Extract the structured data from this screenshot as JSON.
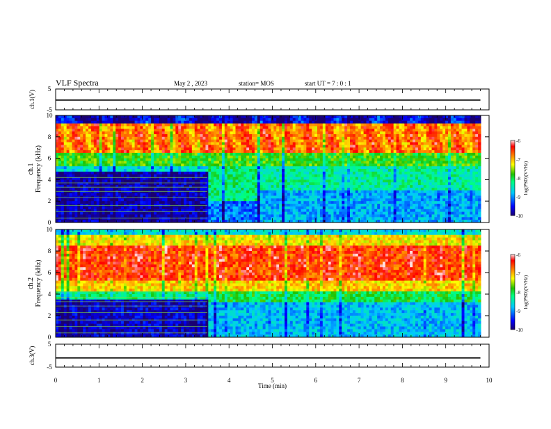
{
  "header": {
    "title": "VLF Spectra",
    "date": "May 2 , 2023",
    "station": "station= MOS",
    "start": "start UT = 7 : 0 : 1"
  },
  "chart_data": [
    {
      "type": "line",
      "panel": "ch1-voltage",
      "ylabel": "ch.1(V)",
      "ylim": [
        -5,
        5
      ],
      "yticks": [
        "5",
        "-5"
      ],
      "xlim": [
        0,
        10
      ],
      "series": [
        {
          "x": [
            0,
            9.8
          ],
          "y": [
            -0.3,
            -0.3
          ]
        }
      ]
    },
    {
      "type": "heatmap",
      "panel": "ch1-spectrogram",
      "ylabel_top": "ch.1",
      "ylabel": "Frequency (kHz)",
      "ylim": [
        0,
        10
      ],
      "yticks": [
        "0",
        "2",
        "4",
        "6",
        "8",
        "10"
      ],
      "xlim": [
        0,
        10
      ],
      "colorbar": {
        "label": "log(PSD)(V²/Hz)",
        "range": [
          -10,
          -6
        ],
        "ticks": [
          "-6",
          "-7",
          "-8",
          "-9",
          "-10"
        ]
      }
    },
    {
      "type": "heatmap",
      "panel": "ch2-spectrogram",
      "ylabel_top": "ch.2",
      "ylabel": "Frequency (kHz)",
      "ylim": [
        0,
        10
      ],
      "yticks": [
        "0",
        "2",
        "4",
        "6",
        "8",
        "10"
      ],
      "xlim": [
        0,
        10
      ],
      "colorbar": {
        "label": "log(PSD)(V²/Hz)",
        "range": [
          -10,
          -6
        ],
        "ticks": [
          "-6",
          "-7",
          "-8",
          "-9",
          "-10"
        ]
      }
    },
    {
      "type": "line",
      "panel": "ch3-voltage",
      "ylabel": "ch.3(V)",
      "ylim": [
        -5,
        5
      ],
      "yticks": [
        "5",
        "-5"
      ],
      "xlim": [
        0,
        10
      ],
      "xlabel": "Time (min)",
      "xticks": [
        "0",
        "1",
        "2",
        "3",
        "4",
        "5",
        "6",
        "7",
        "8",
        "9",
        "10"
      ],
      "series": [
        {
          "x": [
            0,
            9.8
          ],
          "y": [
            -1.0,
            -1.0
          ]
        }
      ]
    }
  ]
}
